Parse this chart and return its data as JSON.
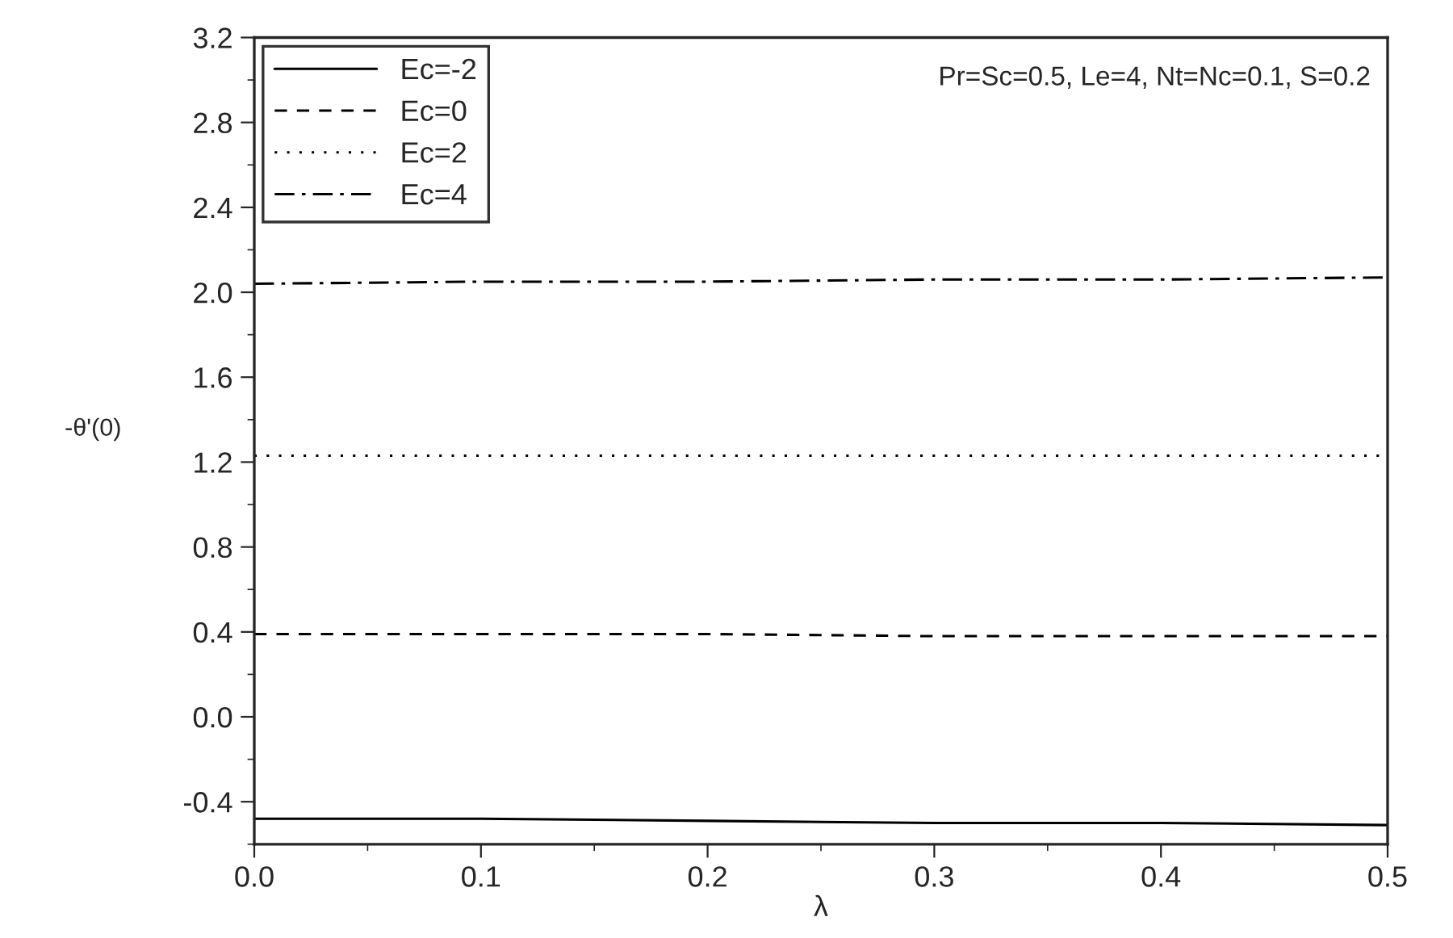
{
  "chart_data": {
    "type": "line",
    "xlabel": "λ",
    "ylabel": "-θ'(0)",
    "x": [
      0,
      0.1,
      0.2,
      0.3,
      0.4,
      0.5
    ],
    "series": [
      {
        "name": "Ec=-2",
        "color": "#000000",
        "line_style": "solid",
        "values": [
          -0.48,
          -0.48,
          -0.49,
          -0.5,
          -0.5,
          -0.51
        ]
      },
      {
        "name": "Ec=0",
        "color": "#000000",
        "line_style": "dashed",
        "values": [
          0.39,
          0.39,
          0.39,
          0.38,
          0.38,
          0.38
        ]
      },
      {
        "name": "Ec=2",
        "color": "#000000",
        "line_style": "dotted",
        "values": [
          1.23,
          1.23,
          1.23,
          1.23,
          1.23,
          1.23
        ]
      },
      {
        "name": "Ec=4",
        "color": "#000000",
        "line_style": "dashdot",
        "values": [
          2.04,
          2.05,
          2.05,
          2.06,
          2.06,
          2.07
        ]
      }
    ],
    "annotations": [
      "Pr=Sc=0.5, Le=4, Nt=Nc=0.1, S=0.2"
    ],
    "xlim": [
      0,
      0.5
    ],
    "xticks": [
      {
        "value": 0,
        "label": "0.0"
      },
      0.1,
      0.2,
      0.3,
      0.4,
      0.5
    ],
    "ylim": [
      -0.6,
      3.2
    ],
    "yticks": [
      -0.4,
      {
        "value": 0,
        "label": "0.0"
      },
      0.4,
      0.8,
      1.2,
      1.6,
      {
        "value": 2,
        "label": "2.0"
      },
      2.4,
      2.8,
      3.2
    ],
    "legend": "top left",
    "grid": false,
    "marker": "none"
  }
}
